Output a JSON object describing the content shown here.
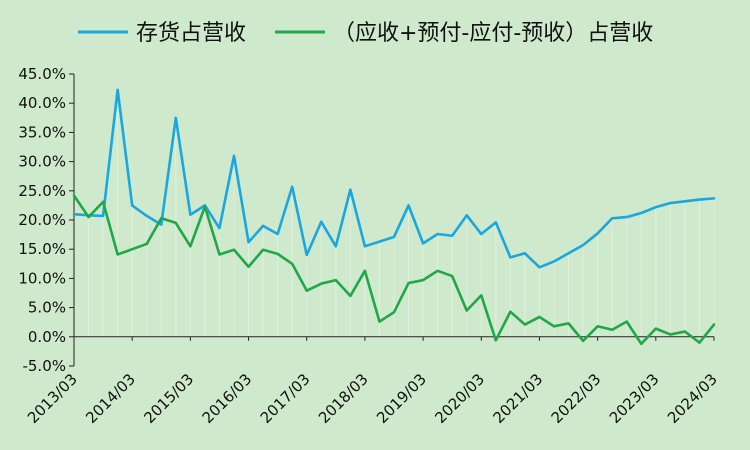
{
  "chart_data": {
    "type": "line",
    "title": "",
    "xlabel": "",
    "ylabel": "",
    "x_tick_labels": [
      "2013/03",
      "2014/03",
      "2015/03",
      "2016/03",
      "2017/03",
      "2018/03",
      "2019/03",
      "2020/03",
      "2021/03",
      "2022/03",
      "2023/03",
      "2024/03"
    ],
    "y_tick_labels": [
      "45.0%",
      "40.0%",
      "35.0%",
      "30.0%",
      "25.0%",
      "20.0%",
      "15.0%",
      "10.0%",
      "5.0%",
      "0.0%",
      "-5.0%"
    ],
    "ylim": [
      -5,
      45
    ],
    "y_unit": "%",
    "legend_position": "top",
    "grid": false,
    "x": [
      "2013/03",
      "2013/06",
      "2013/09",
      "2013/12",
      "2014/03",
      "2014/06",
      "2014/09",
      "2014/12",
      "2015/03",
      "2015/06",
      "2015/09",
      "2015/12",
      "2016/03",
      "2016/06",
      "2016/09",
      "2016/12",
      "2017/03",
      "2017/06",
      "2017/09",
      "2017/12",
      "2018/03",
      "2018/06",
      "2018/09",
      "2018/12",
      "2019/03",
      "2019/06",
      "2019/09",
      "2019/12",
      "2020/03",
      "2020/06",
      "2020/09",
      "2020/12",
      "2021/03",
      "2021/06",
      "2021/09",
      "2021/12",
      "2022/03",
      "2022/06",
      "2022/09",
      "2022/12",
      "2023/03",
      "2023/06",
      "2023/09",
      "2023/12",
      "2024/03"
    ],
    "series": [
      {
        "name": "存货占营收",
        "color": "#1aa7e0",
        "values": [
          21.0,
          20.8,
          20.7,
          42.3,
          22.5,
          20.7,
          19.2,
          37.5,
          20.9,
          22.5,
          18.6,
          31.0,
          16.2,
          19.0,
          17.6,
          25.7,
          14.0,
          19.7,
          15.5,
          25.2,
          15.5,
          16.3,
          17.1,
          22.5,
          16.0,
          17.6,
          17.3,
          20.8,
          17.6,
          19.6,
          13.6,
          14.3,
          11.9,
          12.9,
          14.3,
          15.7,
          17.7,
          20.3,
          20.5,
          21.2,
          22.2,
          22.9,
          23.2,
          23.5,
          23.7
        ]
      },
      {
        "name": "（应收+预付-应付-预收）占营收",
        "color": "#21a649",
        "values": [
          24.2,
          20.5,
          23.1,
          14.1,
          15.0,
          15.9,
          20.3,
          19.5,
          15.5,
          22.3,
          14.1,
          14.9,
          12.0,
          14.9,
          14.2,
          12.5,
          7.9,
          9.1,
          9.7,
          7.0,
          11.3,
          2.6,
          4.2,
          9.2,
          9.7,
          11.3,
          10.4,
          4.5,
          7.1,
          -0.6,
          4.3,
          2.1,
          3.4,
          1.8,
          2.3,
          -0.7,
          1.8,
          1.2,
          2.6,
          -1.2,
          1.4,
          0.4,
          0.9,
          -1.0,
          2.1
        ]
      }
    ]
  },
  "colors": {
    "background": "#cfe9cc",
    "axis": "#222222"
  }
}
